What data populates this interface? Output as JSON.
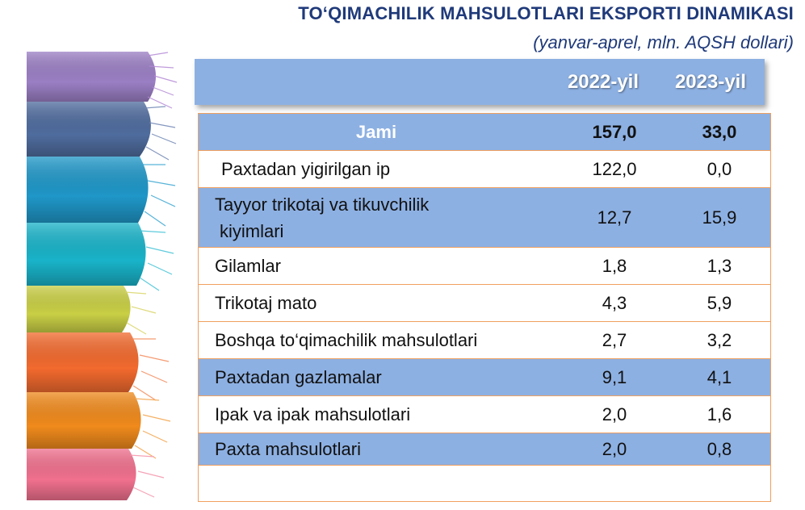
{
  "title": "TO‘QIMACHILIK MAHSULOTLARI EKSPORTI DINAMIKASI",
  "subtitle": "(yanvar-aprel, mln. AQSH dollari)",
  "colors": {
    "title": "#1f3a7a",
    "header": "#8db0e2",
    "row_blue": "#8db0e2",
    "border": "#f0a060"
  },
  "chart_data": {
    "type": "table",
    "title": "TO‘QIMACHILIK MAHSULOTLARI EKSPORTI DINAMIKASI",
    "subtitle": "(yanvar-aprel, mln. AQSH dollari)",
    "columns": [
      "2022-yil",
      "2023-yil"
    ],
    "rows": [
      {
        "label": "Jami",
        "v2022": "157,0",
        "v2023": "33,0"
      },
      {
        "label": "Paxtadan yigirilgan ip",
        "v2022": "122,0",
        "v2023": "0,0"
      },
      {
        "label": "Tayyor trikotaj va tikuvchilik kiyimlari",
        "label_line1": "Tayyor trikotaj va tikuvchilik",
        "label_line2": "kiyimlari",
        "v2022": "12,7",
        "v2023": "15,9"
      },
      {
        "label": "Gilamlar",
        "v2022": "1,8",
        "v2023": "1,3"
      },
      {
        "label": "Trikotaj mato",
        "v2022": "4,3",
        "v2023": "5,9"
      },
      {
        "label": "Boshqa to‘qimachilik mahsulotlari",
        "v2022": "2,7",
        "v2023": "3,2"
      },
      {
        "label": "Paxtadan gazlamalar",
        "v2022": "9,1",
        "v2023": "4,1"
      },
      {
        "label": "Ipak va ipak mahsulotlari",
        "v2022": "2,0",
        "v2023": "1,6"
      },
      {
        "label": "Paxta mahsulotlari",
        "v2022": "2,0",
        "v2023": "0,8"
      }
    ]
  }
}
